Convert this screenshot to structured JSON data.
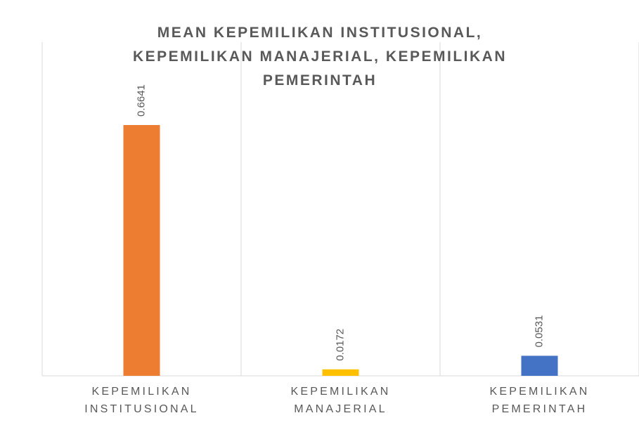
{
  "chart_data": {
    "type": "bar",
    "title": "MEAN KEPEMILIKAN INSTITUSIONAL, KEPEMILIKAN MANAJERIAL, KEPEMILIKAN PEMERINTAH",
    "categories": [
      "KEPEMILIKAN INSTITUSIONAL",
      "KEPEMILIKAN MANAJERIAL",
      "KEPEMILIKAN PEMERINTAH"
    ],
    "values": [
      0.6641,
      0.0172,
      0.0531
    ],
    "colors": [
      "#ED7D31",
      "#FFC000",
      "#4472C4"
    ],
    "grid": true
  }
}
